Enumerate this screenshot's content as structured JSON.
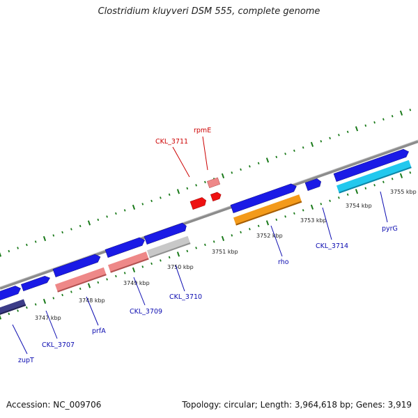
{
  "title": "Clostridium kluyveri DSM 555, complete genome",
  "footer": {
    "accession": "Accession: NC_009706",
    "summary": "Topology: circular; Length: 3,964,618 bp; Genes: 3,919"
  },
  "colors": {
    "backbone": "#8c8c8c",
    "tick": "#1a7a1a",
    "label_blue": "#0a0ab0",
    "label_red": "#cc0000",
    "cds_blue": "#1a1ae6",
    "rrna_red": "#ee1111",
    "trna_pink": "#ee8888",
    "light_blue": "#22c8ee",
    "orange": "#f39a1a",
    "gray": "#c8c8c8",
    "navy": "#3c3c88"
  },
  "kbp_labels": [
    "3747 kbp",
    "3748 kbp",
    "3749 kbp",
    "3750 kbp",
    "3751 kbp",
    "3752 kbp",
    "3753 kbp",
    "3754 kbp",
    "3755 kbp"
  ],
  "gene_labels": [
    {
      "name": "zupT",
      "color": "blue"
    },
    {
      "name": "CKL_3707",
      "color": "blue"
    },
    {
      "name": "prfA",
      "color": "blue"
    },
    {
      "name": "CKL_3709",
      "color": "blue"
    },
    {
      "name": "CKL_3710",
      "color": "blue"
    },
    {
      "name": "CKL_3711",
      "color": "red"
    },
    {
      "name": "rpmE",
      "color": "red"
    },
    {
      "name": "rho",
      "color": "blue"
    },
    {
      "name": "CKL_3714",
      "color": "blue"
    },
    {
      "name": "pyrG",
      "color": "blue"
    }
  ]
}
